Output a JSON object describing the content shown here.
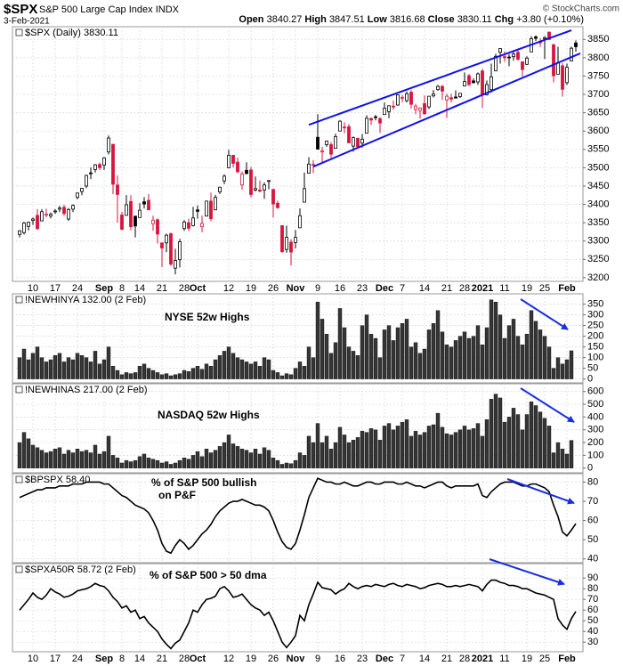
{
  "header": {
    "symbol": "$SPX",
    "name": "S&P 500 Large Cap Index",
    "exchange": "INDX",
    "date": "3-Feb-2021",
    "copyright": "© StockCharts.com",
    "quote": [
      {
        "label": "Open",
        "value": 3840.27
      },
      {
        "label": "High",
        "value": 3847.51
      },
      {
        "label": "Low",
        "value": 3816.68
      },
      {
        "label": "Close",
        "value": 3830.11
      },
      {
        "label": "Chg",
        "value": "+3.80 (+0.10%)"
      }
    ]
  },
  "chart_data": [
    {
      "type": "candlestick",
      "title": "$SPX (Daily) 3830.11",
      "grid": true,
      "up_color": "#000000",
      "down_color": "#d6163f",
      "ylim": [
        3190,
        3875
      ],
      "yticks": [
        3200,
        3250,
        3300,
        3350,
        3400,
        3450,
        3500,
        3550,
        3600,
        3650,
        3700,
        3750,
        3800,
        3850
      ],
      "categories": [
        null,
        null,
        null,
        "10",
        null,
        null,
        null,
        null,
        "17",
        null,
        null,
        null,
        null,
        "24",
        null,
        null,
        null,
        null,
        null,
        "Sep",
        null,
        null,
        null,
        "8",
        null,
        null,
        null,
        "14",
        null,
        null,
        null,
        null,
        "21",
        null,
        null,
        null,
        null,
        "28",
        null,
        null,
        "Oct",
        null,
        null,
        null,
        null,
        null,
        null,
        "12",
        null,
        null,
        null,
        null,
        "19",
        null,
        null,
        null,
        null,
        "26",
        null,
        null,
        null,
        null,
        "Nov",
        null,
        null,
        null,
        null,
        "9",
        null,
        null,
        null,
        null,
        "16",
        null,
        null,
        null,
        null,
        "23",
        null,
        null,
        null,
        null,
        "Dec",
        null,
        null,
        null,
        "7",
        null,
        null,
        null,
        null,
        "14",
        null,
        null,
        null,
        null,
        "21",
        null,
        null,
        null,
        "28",
        null,
        null,
        null,
        "2021",
        null,
        null,
        null,
        null,
        "11",
        null,
        null,
        null,
        null,
        "19",
        null,
        null,
        null,
        "25",
        null,
        null,
        null,
        null,
        "Feb",
        null,
        null
      ],
      "open": [
        3318,
        3323,
        3340,
        3356,
        3370,
        3355,
        3372,
        3368,
        3380,
        3387,
        3392,
        3360,
        3387,
        3419,
        3435,
        3450,
        3486,
        3495,
        3509,
        3507,
        3543,
        3564,
        3453,
        3371,
        3370,
        3408,
        3368,
        3364,
        3407,
        3411,
        3347,
        3358,
        3295,
        3295,
        3320,
        3226,
        3249,
        3334,
        3350,
        3342,
        3385,
        3339,
        3368,
        3409,
        3385,
        3434,
        3464,
        3500,
        3534,
        3515,
        3453,
        3493,
        3494,
        3439,
        3439,
        3439,
        3464,
        3441,
        3403,
        3342,
        3277,
        3297,
        3296,
        3336,
        3406,
        3485,
        3508,
        3583,
        3543,
        3563,
        3563,
        3553,
        3600,
        3611,
        3612,
        3559,
        3580,
        3567,
        3594,
        3635,
        3639,
        3634,
        3645,
        3653,
        3668,
        3671,
        3690,
        3683,
        3706,
        3659,
        3656,
        3675,
        3666,
        3696,
        3713,
        3722,
        3685,
        3691,
        3693,
        3694,
        3723,
        3751,
        3737,
        3734,
        3764,
        3699,
        3713,
        3764,
        3815,
        3803,
        3802,
        3803,
        3815,
        3789,
        3782,
        3816,
        3857,
        3845,
        3852,
        3870,
        3836,
        3755,
        3778,
        3732,
        3791,
        3840.27
      ],
      "high": [
        3330,
        3352,
        3353,
        3364,
        3387,
        3387,
        3388,
        3378,
        3387,
        3396,
        3399,
        3390,
        3400,
        3432,
        3445,
        3481,
        3501,
        3510,
        3514,
        3529,
        3588,
        3564,
        3479,
        3380,
        3425,
        3425,
        3368,
        3403,
        3420,
        3428,
        3369,
        3362,
        3295,
        3320,
        3323,
        3279,
        3306,
        3357,
        3361,
        3393,
        3397,
        3369,
        3409,
        3432,
        3426,
        3447,
        3482,
        3549,
        3534,
        3528,
        3490,
        3515,
        3502,
        3476,
        3465,
        3460,
        3466,
        3441,
        3410,
        3342,
        3342,
        3305,
        3330,
        3389,
        3487,
        3529,
        3521,
        3646,
        3557,
        3574,
        3570,
        3593,
        3629,
        3624,
        3619,
        3585,
        3582,
        3592,
        3643,
        3635,
        3644,
        3638,
        3678,
        3670,
        3683,
        3700,
        3698,
        3708,
        3712,
        3674,
        3665,
        3697,
        3695,
        3712,
        3726,
        3726,
        3702,
        3702,
        3711,
        3703,
        3760,
        3756,
        3744,
        3760,
        3770,
        3738,
        3784,
        3811,
        3826,
        3818,
        3810,
        3820,
        3823,
        3789,
        3804,
        3859,
        3861,
        3853,
        3859,
        3871,
        3836,
        3830,
        3785,
        3784,
        3830,
        3847.51
      ],
      "low": [
        3310,
        3318,
        3329,
        3344,
        3330,
        3354,
        3364,
        3362,
        3374,
        3379,
        3369,
        3355,
        3379,
        3414,
        3425,
        3444,
        3469,
        3487,
        3494,
        3494,
        3536,
        3428,
        3350,
        3330,
        3370,
        3329,
        3310,
        3364,
        3389,
        3385,
        3328,
        3293,
        3229,
        3270,
        3232,
        3209,
        3228,
        3328,
        3327,
        3340,
        3361,
        3324,
        3367,
        3354,
        3384,
        3428,
        3455,
        3499,
        3501,
        3485,
        3440,
        3482,
        3419,
        3435,
        3433,
        3415,
        3441,
        3364,
        3388,
        3268,
        3268,
        3233,
        3280,
        3336,
        3406,
        3485,
        3485,
        3549,
        3512,
        3557,
        3527,
        3553,
        3600,
        3594,
        3567,
        3544,
        3552,
        3555,
        3594,
        3617,
        3629,
        3595,
        3645,
        3635,
        3658,
        3669,
        3679,
        3678,
        3661,
        3646,
        3634,
        3645,
        3660,
        3692,
        3710,
        3685,
        3636,
        3678,
        3689,
        3690,
        3723,
        3723,
        3730,
        3726,
        3663,
        3697,
        3705,
        3764,
        3784,
        3789,
        3777,
        3792,
        3792,
        3749,
        3780,
        3816,
        3846,
        3830,
        3797,
        3848,
        3733,
        3755,
        3694,
        3726,
        3791,
        3816.68
      ],
      "close": [
        3328,
        3349,
        3351,
        3360,
        3334,
        3380,
        3373,
        3373,
        3382,
        3390,
        3375,
        3386,
        3397,
        3431,
        3444,
        3479,
        3485,
        3508,
        3500,
        3527,
        3581,
        3455,
        3427,
        3332,
        3399,
        3339,
        3341,
        3384,
        3401,
        3385,
        3357,
        3319,
        3281,
        3316,
        3237,
        3247,
        3298,
        3352,
        3335,
        3363,
        3381,
        3348,
        3409,
        3361,
        3419,
        3447,
        3477,
        3534,
        3512,
        3489,
        3483,
        3484,
        3427,
        3443,
        3436,
        3453,
        3465,
        3401,
        3391,
        3271,
        3310,
        3270,
        3310,
        3369,
        3443,
        3510,
        3509,
        3551,
        3546,
        3573,
        3537,
        3585,
        3627,
        3610,
        3568,
        3582,
        3558,
        3578,
        3635,
        3630,
        3638,
        3622,
        3662,
        3669,
        3667,
        3699,
        3692,
        3702,
        3673,
        3668,
        3663,
        3647,
        3695,
        3701,
        3722,
        3709,
        3695,
        3687,
        3690,
        3703,
        3735,
        3727,
        3732,
        3756,
        3701,
        3727,
        3748,
        3804,
        3825,
        3800,
        3801,
        3810,
        3796,
        3768,
        3799,
        3852,
        3853,
        3841,
        3855,
        3850,
        3751,
        3787,
        3714,
        3774,
        3826,
        3830.11
      ],
      "trendline_color": "#1010ee",
      "trendlines": [
        {
          "x": [
            65,
            124
          ],
          "y": [
            3617,
            3875
          ]
        },
        {
          "x": [
            66,
            126
          ],
          "y": [
            3503,
            3812
          ]
        }
      ]
    },
    {
      "type": "bar",
      "title": "!NEWHINYA 132.00 (2 Feb)",
      "annotation": [
        "NYSE 52w Highs"
      ],
      "grid": true,
      "color": "#353535",
      "ylim": [
        -10,
        390
      ],
      "yticks": [
        0,
        50,
        100,
        150,
        200,
        250,
        300,
        350
      ],
      "values": [
        100,
        140,
        90,
        120,
        150,
        100,
        80,
        90,
        110,
        120,
        80,
        100,
        90,
        120,
        110,
        100,
        80,
        130,
        70,
        90,
        150,
        60,
        40,
        20,
        30,
        25,
        30,
        60,
        70,
        50,
        40,
        30,
        20,
        25,
        15,
        20,
        25,
        40,
        35,
        50,
        60,
        45,
        70,
        60,
        90,
        110,
        130,
        150,
        120,
        100,
        90,
        80,
        70,
        80,
        60,
        100,
        90,
        40,
        30,
        15,
        25,
        20,
        50,
        80,
        60,
        150,
        100,
        360,
        280,
        210,
        120,
        170,
        330,
        240,
        150,
        130,
        110,
        250,
        300,
        210,
        190,
        100,
        230,
        250,
        180,
        240,
        260,
        280,
        150,
        170,
        120,
        140,
        230,
        260,
        320,
        220,
        160,
        150,
        180,
        200,
        220,
        190,
        200,
        250,
        160,
        240,
        370,
        360,
        300,
        190,
        250,
        280,
        200,
        160,
        210,
        320,
        270,
        230,
        200,
        150,
        50,
        100,
        70,
        90,
        132,
        null
      ]
    },
    {
      "type": "bar",
      "title": "!NEWHINAS 217.00 (2 Feb)",
      "annotation": [
        "NASDAQ 52w Highs"
      ],
      "grid": true,
      "color": "#353535",
      "ylim": [
        -30,
        640
      ],
      "yticks": [
        0,
        100,
        200,
        300,
        400,
        500,
        600
      ],
      "values": [
        200,
        280,
        230,
        180,
        160,
        140,
        120,
        130,
        150,
        160,
        110,
        140,
        120,
        150,
        130,
        140,
        120,
        180,
        110,
        130,
        250,
        100,
        80,
        40,
        60,
        50,
        60,
        90,
        110,
        80,
        70,
        60,
        40,
        50,
        30,
        40,
        60,
        80,
        70,
        100,
        130,
        90,
        150,
        120,
        140,
        170,
        200,
        260,
        190,
        170,
        150,
        140,
        120,
        150,
        110,
        160,
        140,
        80,
        60,
        30,
        40,
        35,
        60,
        120,
        100,
        250,
        200,
        350,
        200,
        250,
        150,
        200,
        320,
        260,
        200,
        220,
        240,
        290,
        280,
        310,
        300,
        220,
        330,
        350,
        300,
        330,
        360,
        380,
        250,
        290,
        260,
        280,
        330,
        340,
        430,
        320,
        270,
        260,
        280,
        300,
        330,
        300,
        310,
        350,
        250,
        380,
        540,
        580,
        550,
        360,
        400,
        470,
        420,
        300,
        420,
        520,
        490,
        440,
        390,
        330,
        120,
        200,
        150,
        110,
        217,
        null
      ]
    },
    {
      "type": "line",
      "title": "$BPSPX 58.40",
      "annotation": [
        "% of S&P 500 bullish",
        "on  P&F"
      ],
      "grid": true,
      "color": "#000000",
      "ylim": [
        38,
        83
      ],
      "yticks": [
        40,
        50,
        60,
        70,
        80
      ],
      "values": [
        72,
        73,
        74,
        75,
        76,
        76,
        77,
        77,
        77,
        78,
        78,
        78,
        79,
        79,
        79,
        80,
        80,
        80,
        80,
        79,
        79,
        77,
        75,
        73,
        72,
        70,
        68,
        67,
        66,
        64,
        60,
        55,
        48,
        44,
        43,
        47,
        50,
        48,
        45,
        47,
        50,
        53,
        55,
        58,
        62,
        65,
        67,
        69,
        70,
        70,
        71,
        70,
        69,
        68,
        68,
        67,
        65,
        60,
        54,
        49,
        46,
        45,
        48,
        55,
        63,
        72,
        77,
        82,
        81,
        80,
        80,
        79,
        79,
        80,
        79,
        78,
        78,
        79,
        80,
        80,
        79,
        79,
        80,
        80,
        80,
        79,
        79,
        80,
        79,
        78,
        78,
        77,
        78,
        79,
        80,
        80,
        78,
        77,
        78,
        78,
        78,
        78,
        78,
        79,
        73,
        72,
        75,
        77,
        79,
        80,
        80,
        80,
        79,
        78,
        78,
        79,
        79,
        78,
        77,
        75,
        68,
        62,
        54,
        52,
        55,
        58.4
      ]
    },
    {
      "type": "line",
      "title": "$SPXA50R 58.72 (2 Feb)",
      "annotation": [
        "% of S&P 500 > 50 dma"
      ],
      "grid": true,
      "color": "#000000",
      "ylim": [
        21,
        101
      ],
      "yticks": [
        30,
        40,
        50,
        60,
        70,
        80,
        90
      ],
      "categories": [
        null,
        null,
        null,
        "10",
        null,
        null,
        null,
        null,
        "17",
        null,
        null,
        null,
        null,
        "24",
        null,
        null,
        null,
        null,
        null,
        "Sep",
        null,
        null,
        null,
        "8",
        null,
        null,
        null,
        "14",
        null,
        null,
        null,
        null,
        "21",
        null,
        null,
        null,
        null,
        "28",
        null,
        null,
        "Oct",
        null,
        null,
        null,
        null,
        null,
        null,
        "12",
        null,
        null,
        null,
        null,
        "19",
        null,
        null,
        null,
        null,
        "26",
        null,
        null,
        null,
        null,
        "Nov",
        null,
        null,
        null,
        null,
        "9",
        null,
        null,
        null,
        null,
        "16",
        null,
        null,
        null,
        null,
        "23",
        null,
        null,
        null,
        null,
        "Dec",
        null,
        null,
        null,
        "7",
        null,
        null,
        null,
        null,
        "14",
        null,
        null,
        null,
        null,
        "21",
        null,
        null,
        null,
        "28",
        null,
        null,
        null,
        "2021",
        null,
        null,
        null,
        null,
        "11",
        null,
        null,
        null,
        null,
        "19",
        null,
        null,
        null,
        "25",
        null,
        null,
        null,
        null,
        "Feb",
        null,
        null
      ],
      "values": [
        60,
        65,
        70,
        76,
        72,
        70,
        74,
        80,
        77,
        75,
        72,
        73,
        75,
        78,
        79,
        80,
        82,
        85,
        83,
        82,
        78,
        72,
        68,
        62,
        64,
        58,
        60,
        52,
        54,
        48,
        44,
        40,
        33,
        28,
        24,
        29,
        32,
        40,
        48,
        60,
        58,
        65,
        70,
        71,
        73,
        80,
        82,
        78,
        72,
        73,
        75,
        70,
        65,
        62,
        60,
        55,
        58,
        50,
        40,
        30,
        25,
        30,
        36,
        55,
        50,
        65,
        75,
        86,
        81,
        80,
        79,
        75,
        78,
        80,
        85,
        82,
        80,
        82,
        83,
        82,
        84,
        83,
        82,
        84,
        85,
        83,
        82,
        84,
        83,
        82,
        80,
        81,
        83,
        84,
        85,
        84,
        82,
        82,
        83,
        82,
        83,
        84,
        83,
        82,
        78,
        84,
        88,
        88,
        86,
        85,
        83,
        83,
        82,
        80,
        80,
        78,
        76,
        75,
        74,
        72,
        70,
        52,
        46,
        42,
        52,
        58.72
      ]
    }
  ]
}
